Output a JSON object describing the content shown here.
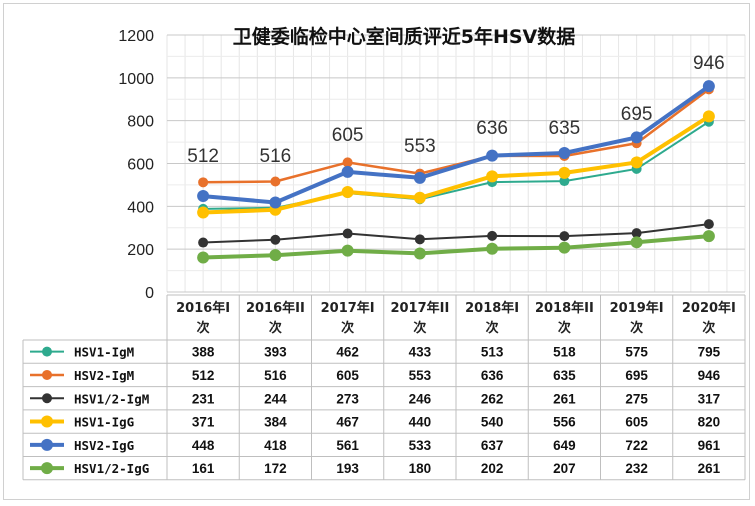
{
  "chart_data": {
    "type": "line",
    "title": "卫健委临检中心室间质评近5年HSV数据",
    "categories": [
      [
        "2016年I",
        "次"
      ],
      [
        "2016年II",
        "次"
      ],
      [
        "2017年I",
        "次"
      ],
      [
        "2017年II",
        "次"
      ],
      [
        "2018年I",
        "次"
      ],
      [
        "2018年II",
        "次"
      ],
      [
        "2019年I",
        "次"
      ],
      [
        "2020年I",
        "次"
      ]
    ],
    "ylim": [
      0,
      1200
    ],
    "yticks": [
      "0",
      "200",
      "400",
      "600",
      "800",
      "1000",
      "1200"
    ],
    "grid": true,
    "legend": "data-table",
    "series": [
      {
        "name": "HSV1-IgM",
        "color": "#2eaa8e",
        "values": [
          388,
          393,
          462,
          433,
          513,
          518,
          575,
          795
        ]
      },
      {
        "name": "HSV2-IgM",
        "color": "#e8712b",
        "values": [
          512,
          516,
          605,
          553,
          636,
          635,
          695,
          946
        ]
      },
      {
        "name": "HSV1/2-IgM",
        "color": "#333333",
        "values": [
          231,
          244,
          273,
          246,
          262,
          261,
          275,
          317
        ]
      },
      {
        "name": "HSV1-IgG",
        "color": "#ffc000",
        "values": [
          371,
          384,
          467,
          440,
          540,
          556,
          605,
          820
        ]
      },
      {
        "name": "HSV2-IgG",
        "color": "#4472c4",
        "values": [
          448,
          418,
          561,
          533,
          637,
          649,
          722,
          961
        ]
      },
      {
        "name": "HSV1/2-IgG",
        "color": "#70ad47",
        "values": [
          161,
          172,
          193,
          180,
          202,
          207,
          232,
          261
        ]
      }
    ],
    "annotations": [
      "512",
      "516",
      "605",
      "553",
      "636",
      "635",
      "695",
      "946"
    ]
  }
}
